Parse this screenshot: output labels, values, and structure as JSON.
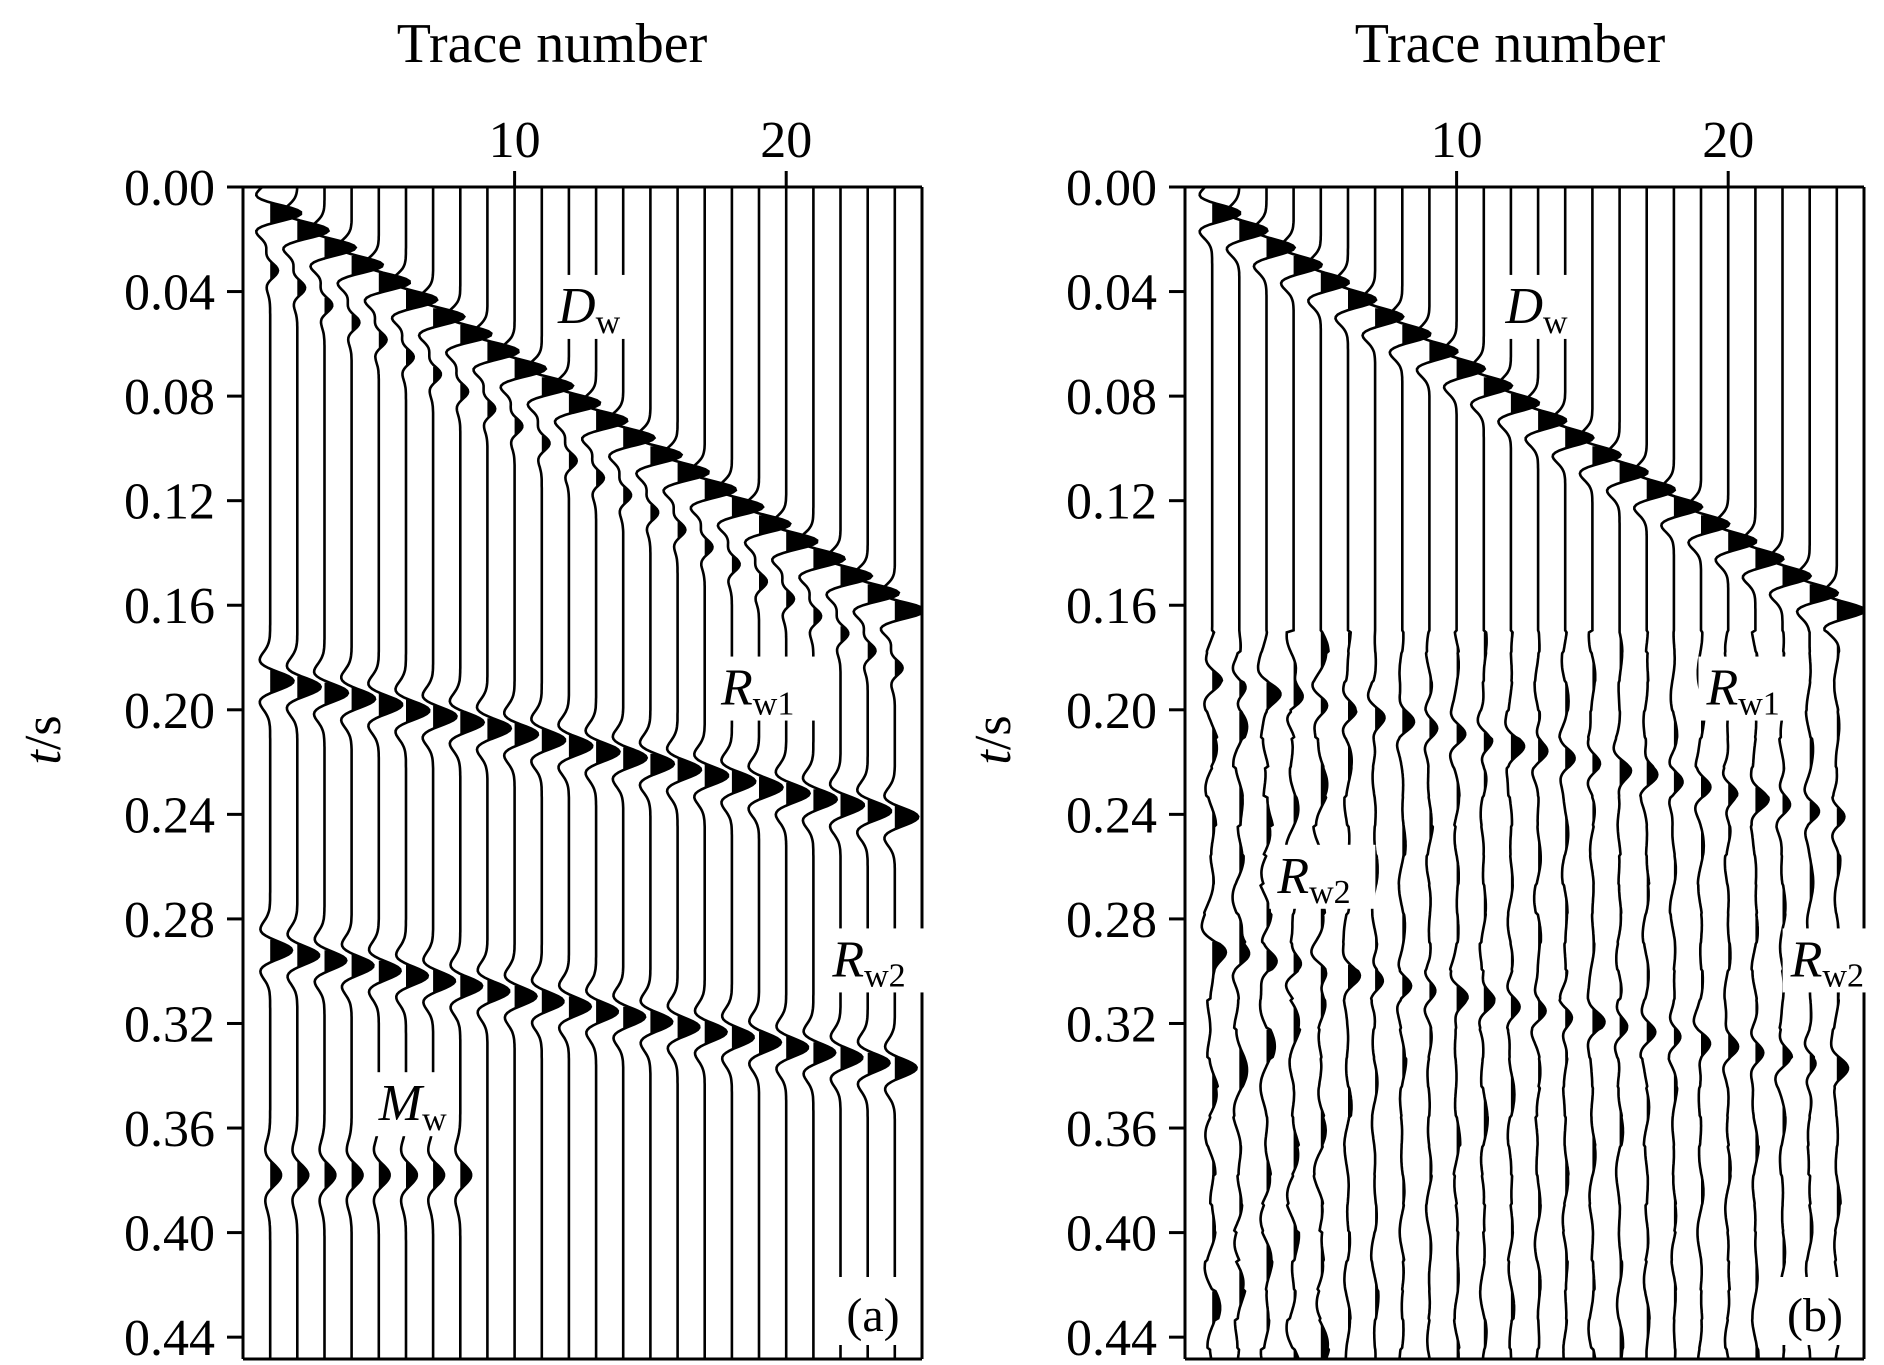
{
  "chart_data": [
    {
      "type": "seismic-wiggle",
      "panel": "(a)",
      "xlabel": "Trace number",
      "ylabel": "t/s",
      "ylabel_main": "t",
      "ylabel_unit": "/s",
      "x_range": [
        0,
        25
      ],
      "x_ticks": [
        10,
        20
      ],
      "x_tick_labels": [
        "10",
        "20"
      ],
      "y_range": [
        0.0,
        0.45
      ],
      "y_ticks": [
        0.0,
        0.04,
        0.08,
        0.12,
        0.16,
        0.2,
        0.24,
        0.28,
        0.32,
        0.36,
        0.4,
        0.44
      ],
      "y_tick_labels": [
        "0.00",
        "0.04",
        "0.08",
        "0.12",
        "0.16",
        "0.20",
        "0.24",
        "0.28",
        "0.32",
        "0.36",
        "0.40",
        "0.44"
      ],
      "traces": 24,
      "events": [
        {
          "name": "D",
          "subscript": "w",
          "kind": "direct",
          "t_first": 0.01,
          "t_last": 0.162,
          "amplitude": 1.0,
          "polarity_fill": "positive"
        },
        {
          "name": "R",
          "subscript": "w1",
          "kind": "reflection",
          "t0": 0.189,
          "moveout": 0.052,
          "amplitude": 0.75
        },
        {
          "name": "R",
          "subscript": "w2",
          "kind": "reflection",
          "t0": 0.292,
          "moveout": 0.045,
          "amplitude": 0.7
        },
        {
          "name": "M",
          "subscript": "w",
          "kind": "multiple",
          "t0": 0.378,
          "moveout": 0.0,
          "amplitude": 0.35,
          "traces_max": 8
        }
      ],
      "annotations": [
        {
          "main": "D",
          "sub": "w",
          "trace": 11.6,
          "t": 0.052
        },
        {
          "main": "R",
          "sub": "w1",
          "trace": 17.6,
          "t": 0.198
        },
        {
          "main": "R",
          "sub": "w2",
          "trace": 21.7,
          "t": 0.302
        },
        {
          "main": "M",
          "sub": "w",
          "trace": 5.0,
          "t": 0.357
        }
      ]
    },
    {
      "type": "seismic-wiggle",
      "panel": "(b)",
      "xlabel": "Trace number",
      "ylabel": "t/s",
      "ylabel_main": "t",
      "ylabel_unit": "/s",
      "x_range": [
        0,
        25
      ],
      "x_ticks": [
        10,
        20
      ],
      "x_tick_labels": [
        "10",
        "20"
      ],
      "y_range": [
        0.0,
        0.45
      ],
      "y_ticks": [
        0.0,
        0.04,
        0.08,
        0.12,
        0.16,
        0.2,
        0.24,
        0.28,
        0.32,
        0.36,
        0.4,
        0.44
      ],
      "y_tick_labels": [
        "0.00",
        "0.04",
        "0.08",
        "0.12",
        "0.16",
        "0.20",
        "0.24",
        "0.28",
        "0.32",
        "0.36",
        "0.40",
        "0.44"
      ],
      "traces": 24,
      "events": [
        {
          "name": "D",
          "subscript": "w",
          "kind": "direct",
          "t_first": 0.01,
          "t_last": 0.162,
          "amplitude": 0.9,
          "polarity_fill": "positive"
        },
        {
          "name": "R",
          "subscript": "w1",
          "kind": "residual",
          "t0": 0.189,
          "moveout": 0.052,
          "amplitude": 0.3
        },
        {
          "name": "R",
          "subscript": "w2",
          "kind": "residual",
          "t0": 0.292,
          "moveout": 0.045,
          "amplitude": 0.28
        }
      ],
      "annotations": [
        {
          "main": "D",
          "sub": "w",
          "trace": 11.8,
          "t": 0.052
        },
        {
          "main": "R",
          "sub": "w1",
          "trace": 19.2,
          "t": 0.198
        },
        {
          "main": "R",
          "sub": "w2",
          "trace": 3.4,
          "t": 0.27
        },
        {
          "main": "R",
          "sub": "w2",
          "trace": 22.3,
          "t": 0.302
        }
      ]
    }
  ],
  "colors": {
    "ink": "#000000",
    "background": "#ffffff"
  }
}
